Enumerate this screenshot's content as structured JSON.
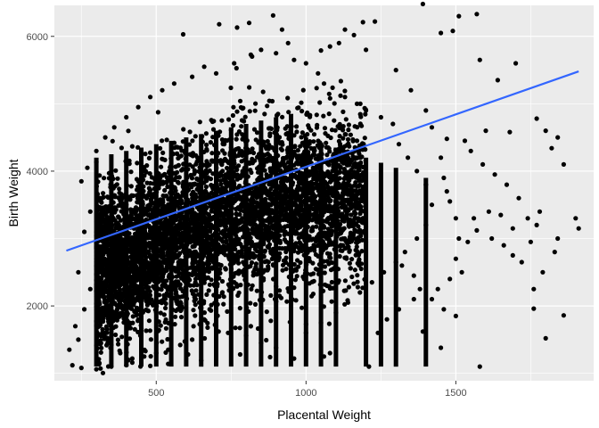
{
  "chart_data": {
    "type": "scatter",
    "title": "",
    "xlabel": "Placental Weight",
    "ylabel": "Birth Weight",
    "xlim": [
      160,
      1960
    ],
    "ylim": [
      890,
      6460
    ],
    "x_ticks": [
      500,
      1000,
      1500
    ],
    "x_tick_labels": [
      "500",
      "1000",
      "1500"
    ],
    "y_ticks": [
      2000,
      4000,
      6000
    ],
    "y_tick_labels": [
      "2000",
      "4000",
      "6000"
    ],
    "grid": true,
    "legend": "none",
    "point_color": "#000000",
    "panel_background": "#ebebeb",
    "grid_color": "#ffffff",
    "trend_line": {
      "type": "linear",
      "color": "#3366ff",
      "x": [
        200,
        1910
      ],
      "y": [
        2820,
        5480
      ]
    },
    "points": [
      [
        590,
        6030
      ],
      [
        710,
        6180
      ],
      [
        770,
        6130
      ],
      [
        810,
        6200
      ],
      [
        890,
        6310
      ],
      [
        920,
        6100
      ],
      [
        940,
        5900
      ],
      [
        1130,
        6100
      ],
      [
        1190,
        6210
      ],
      [
        1230,
        6220
      ],
      [
        1390,
        6480
      ],
      [
        1450,
        6050
      ],
      [
        1510,
        6300
      ],
      [
        1570,
        6330
      ],
      [
        1490,
        6080
      ],
      [
        1580,
        5650
      ],
      [
        1640,
        5350
      ],
      [
        1700,
        5600
      ],
      [
        1680,
        4580
      ],
      [
        1770,
        4780
      ],
      [
        1800,
        4600
      ],
      [
        1820,
        4340
      ],
      [
        1840,
        4500
      ],
      [
        1860,
        4100
      ],
      [
        1900,
        3300
      ],
      [
        1910,
        3150
      ],
      [
        1840,
        3000
      ],
      [
        1830,
        2800
      ],
      [
        1790,
        2500
      ],
      [
        1760,
        2250
      ],
      [
        1800,
        1520
      ],
      [
        1760,
        1960
      ],
      [
        1860,
        1860
      ],
      [
        1740,
        3300
      ],
      [
        1690,
        3150
      ],
      [
        1650,
        3350
      ],
      [
        1610,
        3400
      ],
      [
        1560,
        3300
      ],
      [
        1570,
        3120
      ],
      [
        1540,
        2950
      ],
      [
        1510,
        3000
      ],
      [
        1500,
        3300
      ],
      [
        1480,
        3550
      ],
      [
        1470,
        3700
      ],
      [
        1460,
        3900
      ],
      [
        1450,
        4200
      ],
      [
        1470,
        4480
      ],
      [
        1420,
        4650
      ],
      [
        1400,
        4900
      ],
      [
        1350,
        5200
      ],
      [
        1300,
        5500
      ],
      [
        1200,
        5800
      ],
      [
        1160,
        6020
      ],
      [
        1110,
        5900
      ],
      [
        1080,
        5850
      ],
      [
        1050,
        5790
      ],
      [
        1320,
        2600
      ],
      [
        1360,
        2450
      ],
      [
        1380,
        2250
      ],
      [
        1360,
        2100
      ],
      [
        1310,
        1950
      ],
      [
        1270,
        1800
      ],
      [
        1240,
        1600
      ],
      [
        1390,
        1620
      ],
      [
        1450,
        1380
      ],
      [
        1580,
        1100
      ],
      [
        1210,
        1100
      ],
      [
        1080,
        1300
      ],
      [
        1060,
        1250
      ],
      [
        960,
        1220
      ],
      [
        880,
        1240
      ],
      [
        780,
        1280
      ],
      [
        650,
        1190
      ],
      [
        540,
        1140
      ],
      [
        480,
        1110
      ],
      [
        420,
        1160
      ],
      [
        350,
        1100
      ],
      [
        300,
        1060
      ],
      [
        250,
        1080
      ],
      [
        220,
        1120
      ],
      [
        210,
        1350
      ],
      [
        240,
        1500
      ],
      [
        230,
        1700
      ],
      [
        260,
        1950
      ],
      [
        280,
        2250
      ],
      [
        240,
        2500
      ],
      [
        260,
        3100
      ],
      [
        280,
        3400
      ],
      [
        250,
        3850
      ],
      [
        270,
        4050
      ],
      [
        300,
        4300
      ],
      [
        330,
        4500
      ],
      [
        360,
        4650
      ],
      [
        400,
        4800
      ],
      [
        440,
        4950
      ],
      [
        480,
        5100
      ],
      [
        520,
        5200
      ],
      [
        560,
        5300
      ],
      [
        620,
        5400
      ],
      [
        660,
        5550
      ],
      [
        700,
        5450
      ],
      [
        760,
        5600
      ],
      [
        820,
        5700
      ],
      [
        850,
        5800
      ],
      [
        900,
        5750
      ],
      [
        960,
        5650
      ],
      [
        1000,
        5600
      ],
      [
        1040,
        5450
      ],
      [
        1060,
        5300
      ],
      [
        1130,
        5100
      ],
      [
        1170,
        5000
      ],
      [
        1200,
        4900
      ],
      [
        1250,
        4800
      ],
      [
        1290,
        4700
      ],
      [
        1310,
        4400
      ],
      [
        1340,
        4200
      ],
      [
        1370,
        4000
      ],
      [
        1400,
        3800
      ],
      [
        1420,
        3500
      ],
      [
        1400,
        3200
      ],
      [
        1370,
        3000
      ],
      [
        1330,
        2800
      ],
      [
        1300,
        2650
      ],
      [
        1260,
        2500
      ],
      [
        1220,
        2350
      ],
      [
        1180,
        2200
      ],
      [
        1140,
        2050
      ],
      [
        1100,
        1900
      ],
      [
        1050,
        1750
      ],
      [
        1000,
        1600
      ],
      [
        950,
        1480
      ],
      [
        900,
        1380
      ],
      [
        850,
        1450
      ],
      [
        800,
        1560
      ],
      [
        740,
        1600
      ],
      [
        700,
        1700
      ],
      [
        660,
        1800
      ],
      [
        620,
        1500
      ],
      [
        580,
        1420
      ],
      [
        540,
        1350
      ],
      [
        500,
        1300
      ],
      [
        460,
        1250
      ],
      [
        420,
        1220
      ],
      [
        380,
        1300
      ],
      [
        350,
        1420
      ],
      [
        330,
        1600
      ],
      [
        320,
        1850
      ],
      [
        1620,
        3000
      ],
      [
        1660,
        2900
      ],
      [
        1690,
        2750
      ],
      [
        1720,
        2650
      ],
      [
        1750,
        2950
      ],
      [
        1770,
        3200
      ],
      [
        1780,
        3400
      ],
      [
        1710,
        3600
      ],
      [
        1670,
        3800
      ],
      [
        1630,
        3950
      ],
      [
        1590,
        4100
      ],
      [
        1550,
        4300
      ],
      [
        1530,
        4450
      ],
      [
        1600,
        4600
      ],
      [
        1500,
        2700
      ],
      [
        1520,
        2500
      ],
      [
        1480,
        2400
      ],
      [
        1440,
        2250
      ],
      [
        1420,
        2100
      ],
      [
        1460,
        1950
      ],
      [
        1500,
        1850
      ]
    ]
  }
}
